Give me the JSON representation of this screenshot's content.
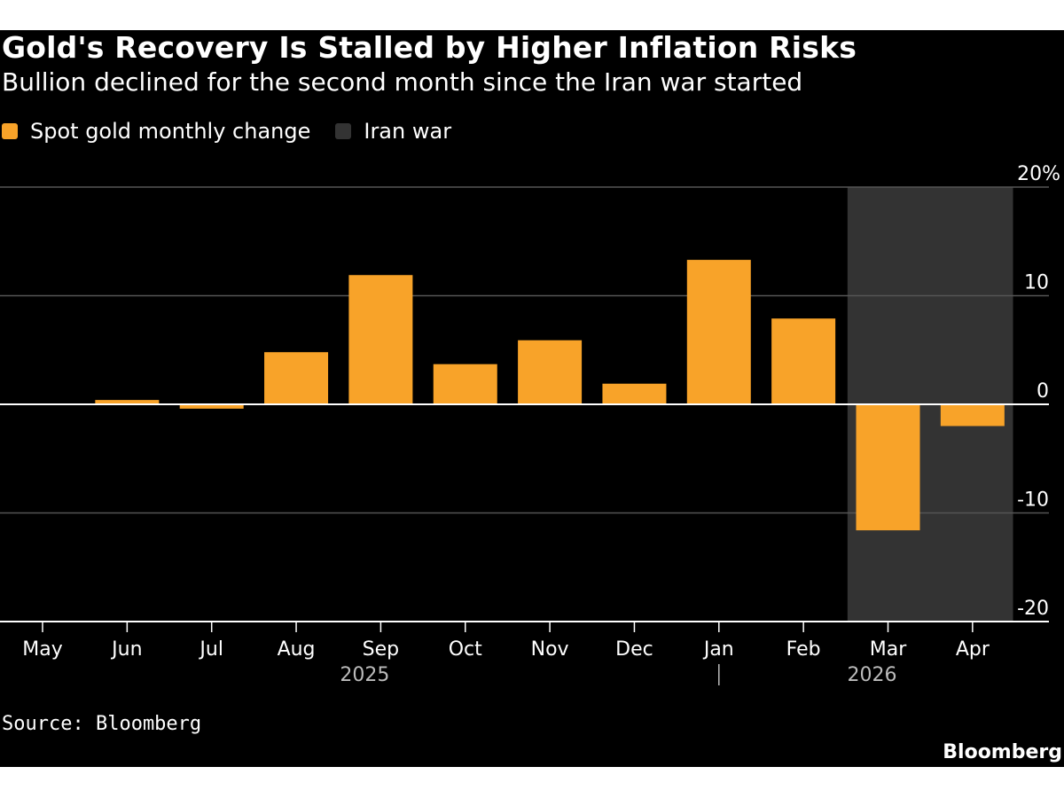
{
  "header": {
    "title": "Gold's Recovery Is Stalled by Higher Inflation Risks",
    "subtitle": "Bullion declined for the second month since the Iran war started"
  },
  "legend": {
    "items": [
      {
        "label": "Spot gold monthly change",
        "color": "#f8a329"
      },
      {
        "label": "Iran war",
        "color": "#333333"
      }
    ]
  },
  "footer": {
    "source": "Source: Bloomberg",
    "brand": "Bloomberg"
  },
  "colors": {
    "background": "#000000",
    "bar": "#f8a329",
    "shade": "#333333",
    "grid": "#555555",
    "text": "#ffffff",
    "muted": "#bbbbbb"
  },
  "chart_data": {
    "type": "bar",
    "categories": [
      "May",
      "Jun",
      "Jul",
      "Aug",
      "Sep",
      "Oct",
      "Nov",
      "Dec",
      "Jan",
      "Feb",
      "Mar",
      "Apr"
    ],
    "series": [
      {
        "name": "Spot gold monthly change",
        "values": [
          0.0,
          0.4,
          -0.4,
          4.8,
          11.9,
          3.7,
          5.9,
          1.9,
          13.3,
          7.9,
          -11.6,
          -2.0
        ]
      }
    ],
    "ylim": [
      -20,
      20
    ],
    "yticks": [
      {
        "value": 20,
        "label": "20%"
      },
      {
        "value": 10,
        "label": "10"
      },
      {
        "value": 0,
        "label": "0"
      },
      {
        "value": -10,
        "label": "-10"
      },
      {
        "value": -20,
        "label": "-20"
      }
    ],
    "year_labels": [
      {
        "label": "2025",
        "category": "Sep"
      },
      {
        "label": "2026",
        "category": "Mar"
      }
    ],
    "year_divider_category": "Jan",
    "shaded_range": {
      "label": "Iran war",
      "from": "Mar",
      "to": "Apr"
    },
    "grid": true,
    "legend_position": "top-left"
  }
}
